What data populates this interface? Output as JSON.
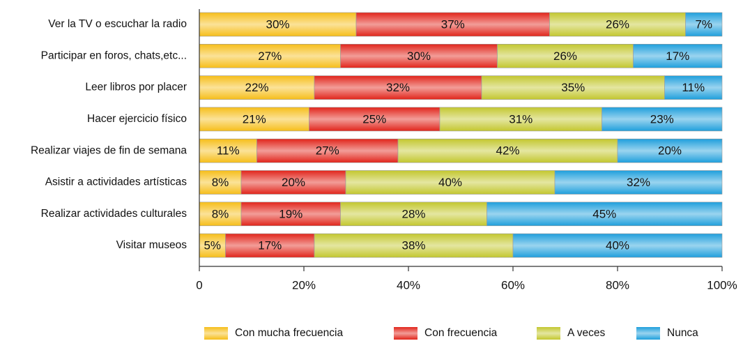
{
  "chart_data": {
    "type": "stacked_bar_horizontal",
    "categories": [
      "Ver la TV o escuchar la radio",
      "Participar en foros, chats,etc...",
      "Leer libros por placer",
      "Hacer ejercicio físico",
      "Realizar viajes de fin de semana",
      "Asistir a actividades artísticas",
      "Realizar actividades culturales",
      "Visitar museos"
    ],
    "series": [
      {
        "name": "Con mucha frecuencia",
        "color": "#f6be1a",
        "values": [
          30,
          27,
          22,
          21,
          11,
          8,
          8,
          5
        ],
        "value_labels": [
          "30%",
          "27%",
          "22%",
          "21%",
          "11%",
          "8%",
          "8%",
          "5%"
        ]
      },
      {
        "name": "Con frecuencia",
        "color": "#e1251b",
        "values": [
          37,
          30,
          32,
          25,
          27,
          20,
          19,
          17
        ],
        "value_labels": [
          "37%",
          "30%",
          "32%",
          "25%",
          "27%",
          "20%",
          "19%",
          "17%"
        ]
      },
      {
        "name": "A veces",
        "color": "#c3c72f",
        "values": [
          26,
          26,
          35,
          31,
          42,
          40,
          28,
          38
        ],
        "value_labels": [
          "26%",
          "26%",
          "35%",
          "31%",
          "42%",
          "40%",
          "28%",
          "38%"
        ]
      },
      {
        "name": "Nunca",
        "color": "#1f9fdc",
        "values": [
          7,
          17,
          11,
          23,
          20,
          32,
          45,
          40
        ],
        "value_labels": [
          "7%",
          "17%",
          "11%",
          "23%",
          "20%",
          "32%",
          "45%",
          "40%"
        ]
      }
    ],
    "xlim": [
      0,
      100
    ],
    "xticks": [
      0,
      {
        "value": 20,
        "label": "20%"
      },
      {
        "value": 40,
        "label": "40%"
      },
      {
        "value": 60,
        "label": "60%"
      },
      {
        "value": 80,
        "label": "80%"
      },
      {
        "value": 100,
        "label": "100%"
      }
    ],
    "legend": "bottom"
  }
}
